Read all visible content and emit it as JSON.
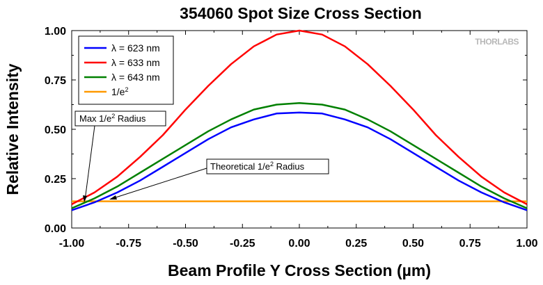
{
  "chart_data": {
    "type": "line",
    "title": "354060 Spot Size Cross Section",
    "xlabel": "Beam Profile Y Cross Section (µm)",
    "ylabel": "Relative Intensity",
    "xlim": [
      -1.0,
      1.0
    ],
    "ylim": [
      0.0,
      1.0
    ],
    "xticks": [
      "-1.00",
      "-0.75",
      "-0.50",
      "-0.25",
      "0.00",
      "0.25",
      "0.50",
      "0.75",
      "1.00"
    ],
    "yticks": [
      "0.00",
      "0.25",
      "0.50",
      "0.75",
      "1.00"
    ],
    "grid": false,
    "legend_position": "top-left",
    "x": [
      -1.0,
      -0.9,
      -0.8,
      -0.7,
      -0.6,
      -0.5,
      -0.4,
      -0.3,
      -0.2,
      -0.1,
      0.0,
      0.1,
      0.2,
      0.3,
      0.4,
      0.5,
      0.6,
      0.7,
      0.8,
      0.9,
      1.0
    ],
    "series": [
      {
        "name": "λ = 623 nm",
        "color": "#0000ff",
        "values": [
          0.09,
          0.13,
          0.18,
          0.24,
          0.31,
          0.38,
          0.45,
          0.51,
          0.55,
          0.58,
          0.585,
          0.58,
          0.55,
          0.51,
          0.45,
          0.38,
          0.31,
          0.24,
          0.18,
          0.13,
          0.09
        ]
      },
      {
        "name": "λ = 633 nm",
        "color": "#ff0000",
        "values": [
          0.12,
          0.18,
          0.26,
          0.36,
          0.47,
          0.6,
          0.72,
          0.83,
          0.92,
          0.98,
          1.0,
          0.98,
          0.92,
          0.83,
          0.72,
          0.6,
          0.47,
          0.36,
          0.26,
          0.18,
          0.12
        ]
      },
      {
        "name": "λ = 643 nm",
        "color": "#008000",
        "values": [
          0.1,
          0.15,
          0.21,
          0.28,
          0.35,
          0.42,
          0.49,
          0.55,
          0.6,
          0.625,
          0.633,
          0.625,
          0.6,
          0.55,
          0.49,
          0.42,
          0.35,
          0.28,
          0.21,
          0.15,
          0.1
        ]
      },
      {
        "name": "1/e",
        "name_superscript": "2",
        "color": "#ff9900",
        "values": [
          0.1353,
          0.1353,
          0.1353,
          0.1353,
          0.1353,
          0.1353,
          0.1353,
          0.1353,
          0.1353,
          0.1353,
          0.1353,
          0.1353,
          0.1353,
          0.1353,
          0.1353,
          0.1353,
          0.1353,
          0.1353,
          0.1353,
          0.1353,
          0.1353
        ]
      }
    ],
    "annotations": [
      {
        "text": "Max 1/e",
        "superscript": "2",
        "suffix": " Radius"
      },
      {
        "text": "Theoretical 1/e",
        "superscript": "2",
        "suffix": " Radius"
      }
    ],
    "watermark": "THORLABS"
  }
}
